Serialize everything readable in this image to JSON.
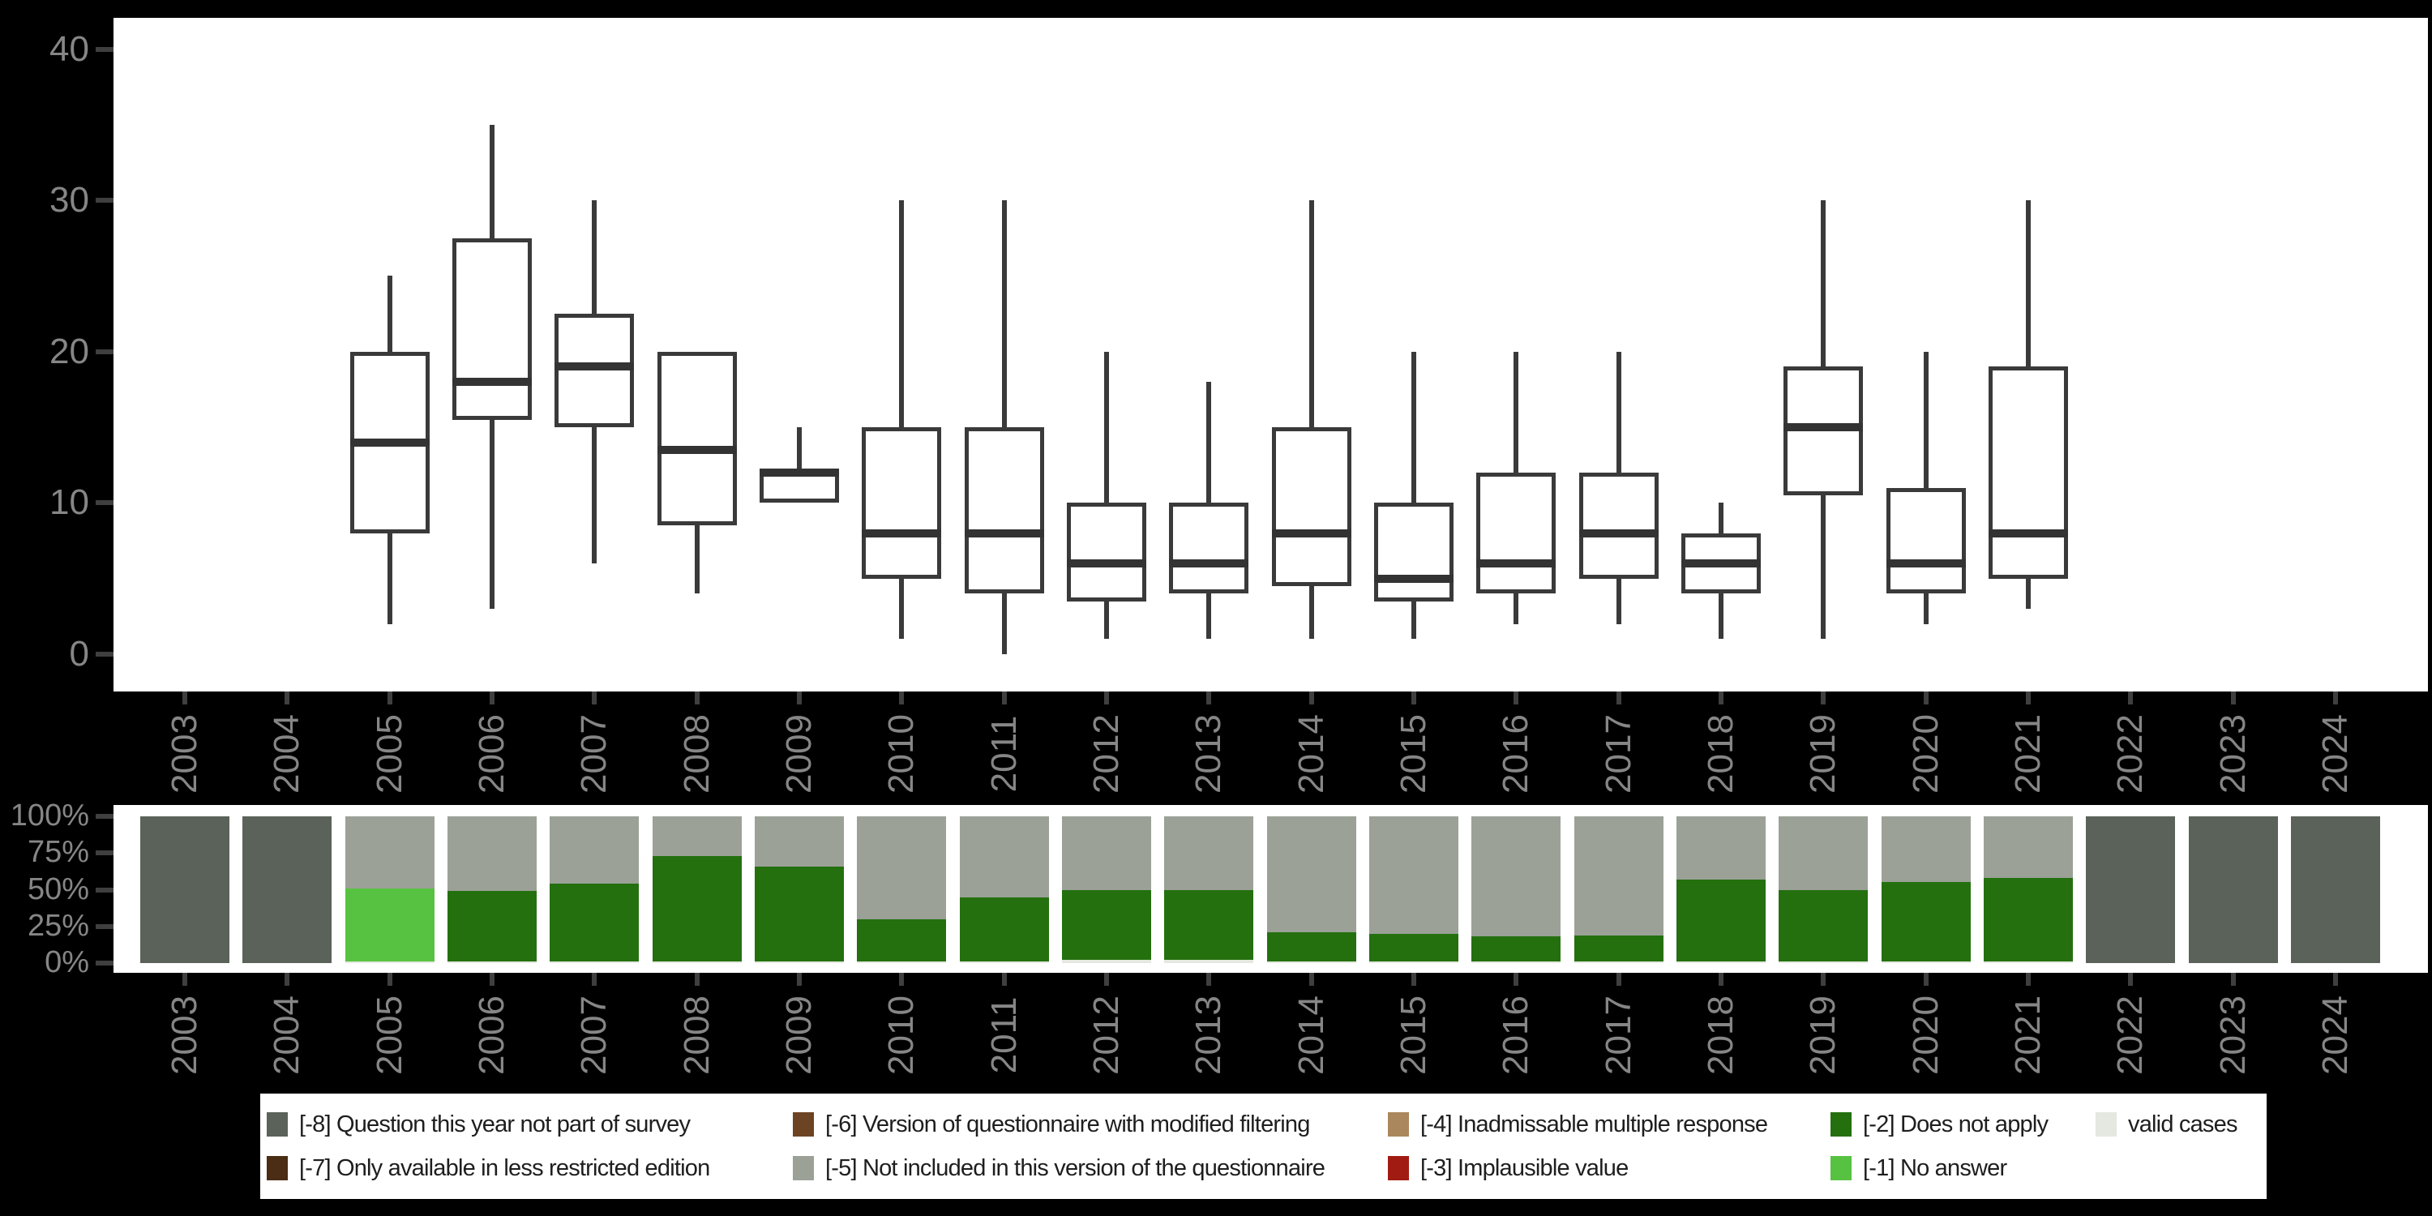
{
  "figure": {
    "background_color": "#000000",
    "panel_color": "#ffffff",
    "axis_text_color": "#868686",
    "tick_color": "#3f3f3f",
    "box_line_color": "#3a3a3a"
  },
  "chart_data": [
    {
      "type": "boxplot",
      "title": "",
      "xlabel": "",
      "ylabel": "",
      "categories": [
        "2003",
        "2004",
        "2005",
        "2006",
        "2007",
        "2008",
        "2009",
        "2010",
        "2011",
        "2012",
        "2013",
        "2014",
        "2015",
        "2016",
        "2017",
        "2018",
        "2019",
        "2020",
        "2021",
        "2022",
        "2023",
        "2024"
      ],
      "ylim": [
        0,
        40
      ],
      "y_ticks": [
        0,
        10,
        20,
        30,
        40
      ],
      "y_tick_labels": [
        "0",
        "10",
        "20",
        "30",
        "40"
      ],
      "grid": "off",
      "whisker_caps": "none",
      "boxes": [
        null,
        null,
        {
          "min": 2,
          "q1": 8,
          "median": 14,
          "q3": 20,
          "max": 25
        },
        {
          "min": 3,
          "q1": 15.5,
          "median": 18,
          "q3": 27.5,
          "max": 35
        },
        {
          "min": 6,
          "q1": 15,
          "median": 19,
          "q3": 22.5,
          "max": 30
        },
        {
          "min": 4,
          "q1": 8.5,
          "median": 13.5,
          "q3": 20,
          "max": 20
        },
        {
          "min": 10,
          "q1": 10,
          "median": 12,
          "q3": 12,
          "max": 15
        },
        {
          "min": 1,
          "q1": 5,
          "median": 8,
          "q3": 15,
          "max": 30
        },
        {
          "min": 0,
          "q1": 4,
          "median": 8,
          "q3": 15,
          "max": 30
        },
        {
          "min": 1,
          "q1": 3.5,
          "median": 6,
          "q3": 10,
          "max": 20
        },
        {
          "min": 1,
          "q1": 4,
          "median": 6,
          "q3": 10,
          "max": 18
        },
        {
          "min": 1,
          "q1": 4.5,
          "median": 8,
          "q3": 15,
          "max": 30
        },
        {
          "min": 1,
          "q1": 3.5,
          "median": 5,
          "q3": 10,
          "max": 20
        },
        {
          "min": 2,
          "q1": 4,
          "median": 6,
          "q3": 12,
          "max": 20
        },
        {
          "min": 2,
          "q1": 5,
          "median": 8,
          "q3": 12,
          "max": 20
        },
        {
          "min": 1,
          "q1": 4,
          "median": 6,
          "q3": 8,
          "max": 10
        },
        {
          "min": 1,
          "q1": 10.5,
          "median": 15,
          "q3": 19,
          "max": 30
        },
        {
          "min": 2,
          "q1": 4,
          "median": 6,
          "q3": 11,
          "max": 20
        },
        {
          "min": 3,
          "q1": 5,
          "median": 8,
          "q3": 19,
          "max": 30
        },
        null,
        null,
        null
      ]
    },
    {
      "type": "bar",
      "stacked": true,
      "unit": "percent",
      "title": "",
      "categories": [
        "2003",
        "2004",
        "2005",
        "2006",
        "2007",
        "2008",
        "2009",
        "2010",
        "2011",
        "2012",
        "2013",
        "2014",
        "2015",
        "2016",
        "2017",
        "2018",
        "2019",
        "2020",
        "2021",
        "2022",
        "2023",
        "2024"
      ],
      "ylim": [
        0,
        100
      ],
      "y_ticks": [
        0,
        25,
        50,
        75,
        100
      ],
      "y_tick_labels": [
        "0%",
        "25%",
        "50%",
        "75%",
        "100%"
      ],
      "segment_colors": {
        "-8": "#5b6259",
        "-7": "#4a2d14",
        "-6": "#6d4423",
        "-5": "#9ba197",
        "-4": "#aa875c",
        "-3": "#a21b12",
        "-2": "#24700f",
        "-1": "#57c241",
        "valid": "#e4e8e0"
      },
      "stacks": [
        [
          {
            "code": "-8",
            "pct": 100
          }
        ],
        [
          {
            "code": "-8",
            "pct": 100
          }
        ],
        [
          {
            "code": "valid",
            "pct": 1
          },
          {
            "code": "-1",
            "pct": 50
          },
          {
            "code": "-5",
            "pct": 49
          }
        ],
        [
          {
            "code": "valid",
            "pct": 1
          },
          {
            "code": "-2",
            "pct": 48
          },
          {
            "code": "-5",
            "pct": 51
          }
        ],
        [
          {
            "code": "valid",
            "pct": 1
          },
          {
            "code": "-2",
            "pct": 53
          },
          {
            "code": "-5",
            "pct": 46
          }
        ],
        [
          {
            "code": "valid",
            "pct": 1
          },
          {
            "code": "-2",
            "pct": 72
          },
          {
            "code": "-5",
            "pct": 27
          }
        ],
        [
          {
            "code": "valid",
            "pct": 1
          },
          {
            "code": "-2",
            "pct": 65
          },
          {
            "code": "-5",
            "pct": 34
          }
        ],
        [
          {
            "code": "valid",
            "pct": 1
          },
          {
            "code": "-2",
            "pct": 29
          },
          {
            "code": "-5",
            "pct": 70
          }
        ],
        [
          {
            "code": "valid",
            "pct": 1
          },
          {
            "code": "-2",
            "pct": 44
          },
          {
            "code": "-5",
            "pct": 55
          }
        ],
        [
          {
            "code": "valid",
            "pct": 2
          },
          {
            "code": "-2",
            "pct": 48
          },
          {
            "code": "-5",
            "pct": 50
          }
        ],
        [
          {
            "code": "valid",
            "pct": 2
          },
          {
            "code": "-2",
            "pct": 48
          },
          {
            "code": "-5",
            "pct": 50
          }
        ],
        [
          {
            "code": "valid",
            "pct": 1
          },
          {
            "code": "-2",
            "pct": 20
          },
          {
            "code": "-5",
            "pct": 79
          }
        ],
        [
          {
            "code": "valid",
            "pct": 1
          },
          {
            "code": "-2",
            "pct": 19
          },
          {
            "code": "-5",
            "pct": 80
          }
        ],
        [
          {
            "code": "valid",
            "pct": 1
          },
          {
            "code": "-2",
            "pct": 17
          },
          {
            "code": "-5",
            "pct": 82
          }
        ],
        [
          {
            "code": "valid",
            "pct": 1
          },
          {
            "code": "-2",
            "pct": 18
          },
          {
            "code": "-5",
            "pct": 81
          }
        ],
        [
          {
            "code": "valid",
            "pct": 1
          },
          {
            "code": "-2",
            "pct": 56
          },
          {
            "code": "-5",
            "pct": 43
          }
        ],
        [
          {
            "code": "valid",
            "pct": 1
          },
          {
            "code": "-2",
            "pct": 49
          },
          {
            "code": "-5",
            "pct": 50
          }
        ],
        [
          {
            "code": "valid",
            "pct": 1
          },
          {
            "code": "-2",
            "pct": 54
          },
          {
            "code": "-5",
            "pct": 45
          }
        ],
        [
          {
            "code": "valid",
            "pct": 1
          },
          {
            "code": "-2",
            "pct": 57
          },
          {
            "code": "-5",
            "pct": 42
          }
        ],
        [
          {
            "code": "-8",
            "pct": 100
          }
        ],
        [
          {
            "code": "-8",
            "pct": 100
          }
        ],
        [
          {
            "code": "-8",
            "pct": 100
          }
        ]
      ]
    }
  ],
  "legend": {
    "background": "#ffffff",
    "text_color": "#1e1e1e",
    "columns": [
      [
        {
          "code": "-8",
          "label": "[-8] Question this year not part of survey"
        },
        {
          "code": "-7",
          "label": "[-7] Only available in less restricted edition"
        }
      ],
      [
        {
          "code": "-6",
          "label": "[-6] Version of questionnaire with modified filtering"
        },
        {
          "code": "-5",
          "label": "[-5] Not included in this version of the questionnaire"
        }
      ],
      [
        {
          "code": "-4",
          "label": "[-4] Inadmissable multiple response"
        },
        {
          "code": "-3",
          "label": "[-3] Implausible value"
        }
      ],
      [
        {
          "code": "-2",
          "label": "[-2] Does not apply"
        },
        {
          "code": "-1",
          "label": "[-1] No answer"
        }
      ],
      [
        {
          "code": "valid",
          "label": "valid cases"
        }
      ]
    ]
  }
}
